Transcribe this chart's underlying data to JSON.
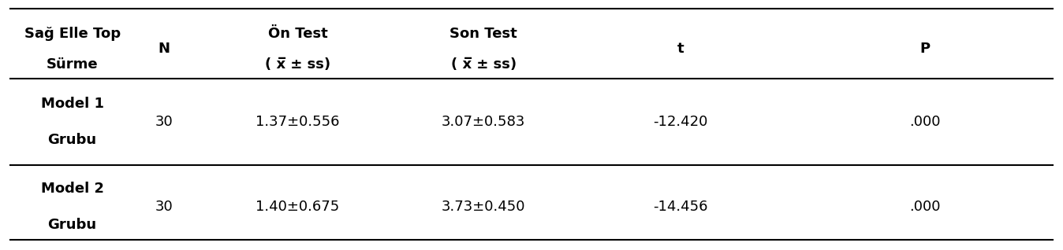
{
  "col1_header_line1": "Sağ Elle Top",
  "col1_header_line2": "Sürme",
  "col2_header": "N",
  "col3_header_line1": "Ön Test",
  "col3_header_line2": "( x̅ ± ss)",
  "col4_header_line1": "Son Test",
  "col4_header_line2": "( x̅ ± ss)",
  "col5_header": "t",
  "col6_header": "P",
  "rows": [
    {
      "group_line1": "Model 1",
      "group_line2": "Grubu",
      "N": "30",
      "on_test": "1.37±0.556",
      "son_test": "3.07±0.583",
      "t": "-12.420",
      "p": ".000"
    },
    {
      "group_line1": "Model 2",
      "group_line2": "Grubu",
      "N": "30",
      "on_test": "1.40±0.675",
      "son_test": "3.73±0.450",
      "t": "-14.456",
      "p": ".000"
    }
  ],
  "bg_color": "#ffffff",
  "text_color": "#000000",
  "line_color": "#000000",
  "header_fontsize": 13,
  "body_fontsize": 13,
  "fig_width": 13.48,
  "fig_height": 3.18
}
